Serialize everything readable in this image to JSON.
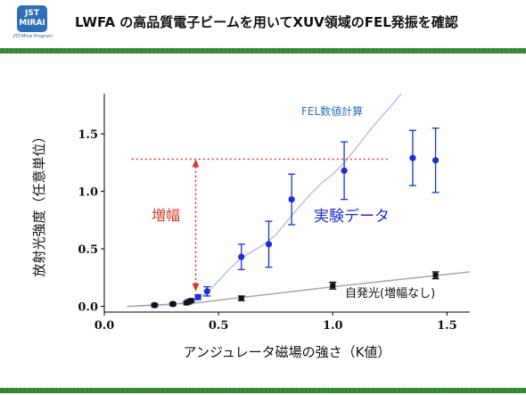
{
  "header": {
    "title": "LWFA の高品質電子ビームを用いてXUV領域のFEL発振を確認",
    "logo_line1": "JST",
    "logo_line2": "MIRAI",
    "logo_sub": "JST-Mirai Program"
  },
  "colors": {
    "experiment": "#1c2fd6",
    "spontaneous": "#111111",
    "fel_curve": "#b8c0ec",
    "spont_curve": "#a8a8a8",
    "amplify": "#d43a2a",
    "fel_label": "#2e6fc0"
  },
  "chart_data": {
    "type": "scatter",
    "xlabel": "アンジュレータ磁場の強さ（K値）",
    "ylabel": "放射光強度（任意単位）",
    "xlim": [
      0.0,
      1.6
    ],
    "ylim": [
      -0.05,
      1.85
    ],
    "xticks": [
      "0.0",
      "0.5",
      "1.0",
      "1.5"
    ],
    "yticks": [
      "0.0",
      "0.5",
      "1.0",
      "1.5"
    ],
    "grid": false,
    "series": [
      {
        "name": "実験データ",
        "points": [
          {
            "x": 0.22,
            "y": 0.01,
            "err": 0.01
          },
          {
            "x": 0.3,
            "y": 0.02,
            "err": 0.01
          },
          {
            "x": 0.37,
            "y": 0.04,
            "err": 0.02
          },
          {
            "x": 0.41,
            "y": 0.08,
            "err": 0.02
          },
          {
            "x": 0.45,
            "y": 0.13,
            "err": 0.04
          },
          {
            "x": 0.6,
            "y": 0.43,
            "err": 0.11
          },
          {
            "x": 0.72,
            "y": 0.54,
            "err": 0.2
          },
          {
            "x": 0.82,
            "y": 0.93,
            "err": 0.22
          },
          {
            "x": 1.05,
            "y": 1.18,
            "err": 0.25
          },
          {
            "x": 1.35,
            "y": 1.29,
            "err": 0.24
          },
          {
            "x": 1.45,
            "y": 1.27,
            "err": 0.28
          }
        ]
      },
      {
        "name": "自発光(増幅なし)",
        "points": [
          {
            "x": 0.22,
            "y": 0.01,
            "err": 0.01
          },
          {
            "x": 0.3,
            "y": 0.02,
            "err": 0.01
          },
          {
            "x": 0.36,
            "y": 0.03,
            "err": 0.01
          },
          {
            "x": 0.38,
            "y": 0.05,
            "err": 0.01
          },
          {
            "x": 0.6,
            "y": 0.07,
            "err": 0.02
          },
          {
            "x": 1.0,
            "y": 0.18,
            "err": 0.03
          },
          {
            "x": 1.45,
            "y": 0.27,
            "err": 0.03
          }
        ]
      }
    ],
    "curves": [
      {
        "name": "FEL数値計算",
        "points": [
          [
            0.1,
            0.0
          ],
          [
            0.3,
            0.015
          ],
          [
            0.4,
            0.05
          ],
          [
            0.45,
            0.12
          ],
          [
            0.5,
            0.22
          ],
          [
            0.55,
            0.33
          ],
          [
            0.6,
            0.42
          ],
          [
            0.65,
            0.48
          ],
          [
            0.7,
            0.54
          ],
          [
            0.75,
            0.62
          ],
          [
            0.8,
            0.74
          ],
          [
            0.85,
            0.86
          ],
          [
            0.9,
            0.97
          ],
          [
            0.95,
            1.07
          ],
          [
            1.0,
            1.15
          ],
          [
            1.05,
            1.25
          ],
          [
            1.1,
            1.37
          ],
          [
            1.15,
            1.5
          ],
          [
            1.2,
            1.62
          ],
          [
            1.25,
            1.73
          ],
          [
            1.3,
            1.85
          ]
        ]
      },
      {
        "name": "自発光(増幅なし)",
        "points": [
          [
            0.1,
            0.0
          ],
          [
            0.4,
            0.03
          ],
          [
            1.0,
            0.17
          ],
          [
            1.6,
            0.3
          ]
        ]
      }
    ],
    "annotations": {
      "fel_label": "FEL数値計算",
      "exp_label": "実験データ",
      "spont_label": "自発光(増幅なし)",
      "amp_label": "増幅",
      "hline_y": 1.28,
      "hline_x": [
        0.12,
        1.25
      ],
      "arrow_x": 0.4,
      "arrow_y": [
        0.13,
        1.28
      ]
    }
  }
}
